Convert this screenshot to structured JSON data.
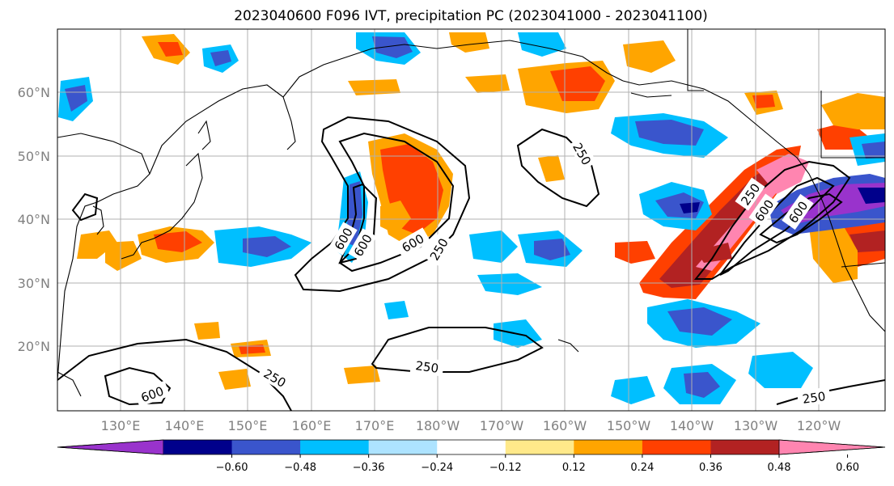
{
  "title": "2023040600 F096 IVT, precipitation PC (2023041000 - 2023041100)",
  "map": {
    "lon_labels": [
      "130°E",
      "140°E",
      "150°E",
      "160°E",
      "170°E",
      "180°W",
      "170°W",
      "160°W",
      "150°W",
      "140°W",
      "130°W",
      "120°W"
    ],
    "lat_labels": [
      "60°N",
      "50°N",
      "40°N",
      "30°N",
      "20°N"
    ],
    "ivt_contour_labels": [
      "250",
      "250",
      "250",
      "250",
      "250",
      "250",
      "600",
      "600",
      "600",
      "600",
      "600",
      "600"
    ]
  },
  "colorbar": {
    "ticks": [
      "−0.60",
      "−0.48",
      "−0.36",
      "−0.24",
      "−0.12",
      "0.12",
      "0.24",
      "0.36",
      "0.48",
      "0.60"
    ],
    "colors": [
      "#9933cc",
      "#00008b",
      "#3a55cc",
      "#00bfff",
      "#ade3ff",
      "#ffffff",
      "#ffe98a",
      "#ffa500",
      "#ff4000",
      "#b22222",
      "#ff85b0"
    ]
  }
}
